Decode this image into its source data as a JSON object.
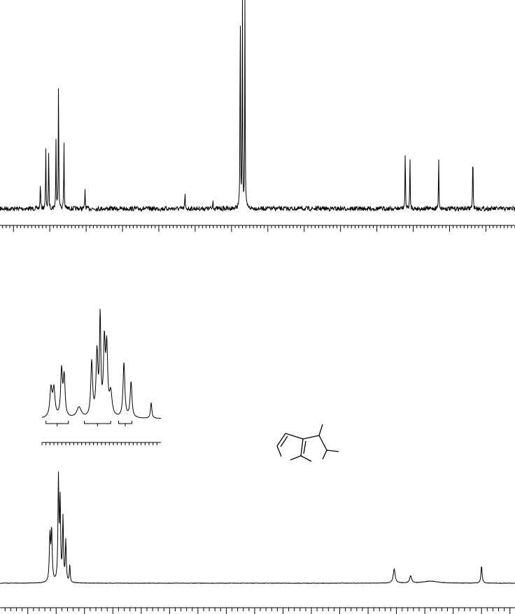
{
  "chart_data": [
    {
      "type": "line",
      "kind": "13C NMR spectrum",
      "title": "",
      "xlabel": "",
      "ylabel": "",
      "xlim": [
        143.7,
        2.0
      ],
      "x_units": "ppm",
      "x_reversed": true,
      "major_tick_step": 10,
      "minor_tick_step": 1,
      "tick_labels_visible": false,
      "baseline_noise": true,
      "peaks": [
        {
          "ppm": 132.6,
          "intensity": 21
        },
        {
          "ppm": 131.1,
          "intensity": 45
        },
        {
          "ppm": 130.3,
          "intensity": 45
        },
        {
          "ppm": 128.3,
          "intensity": 51
        },
        {
          "ppm": 127.6,
          "intensity": 100
        },
        {
          "ppm": 126.1,
          "intensity": 51
        },
        {
          "ppm": 120.3,
          "intensity": 15
        },
        {
          "ppm": 92.8,
          "intensity": 11
        },
        {
          "ppm": 85.1,
          "intensity": 7
        },
        {
          "ppm": 77.6,
          "intensity": 160
        },
        {
          "ppm": 77.0,
          "intensity": 160
        },
        {
          "ppm": 76.3,
          "intensity": 160
        },
        {
          "ppm": 32.2,
          "intensity": 45
        },
        {
          "ppm": 30.9,
          "intensity": 38
        },
        {
          "ppm": 23.0,
          "intensity": 39
        },
        {
          "ppm": 13.6,
          "intensity": 44
        }
      ]
    },
    {
      "type": "line",
      "kind": "1H NMR spectrum",
      "title": "",
      "xlabel": "",
      "ylabel": "",
      "xlim": [
        8.49,
        -0.59
      ],
      "x_units": "ppm",
      "x_reversed": true,
      "major_tick_step": 0.5,
      "minor_tick_step": 0.1,
      "tick_labels_visible": false,
      "peaks": [
        {
          "ppm": 7.61,
          "intensity": 45,
          "width": 0.012
        },
        {
          "ppm": 7.58,
          "intensity": 50,
          "width": 0.012
        },
        {
          "ppm": 7.46,
          "intensity": 100,
          "width": 0.01
        },
        {
          "ppm": 7.43,
          "intensity": 78,
          "width": 0.01
        },
        {
          "ppm": 7.38,
          "intensity": 62,
          "width": 0.01
        },
        {
          "ppm": 7.33,
          "intensity": 40,
          "width": 0.01
        },
        {
          "ppm": 7.26,
          "intensity": 18,
          "width": 0.008
        },
        {
          "ppm": 1.54,
          "intensity": 14,
          "width": 0.02
        },
        {
          "ppm": 1.25,
          "intensity": 7,
          "width": 0.02
        },
        {
          "ppm": 0.9,
          "intensity": 2,
          "width": 0.15
        },
        {
          "ppm": 0.0,
          "intensity": 17,
          "width": 0.012
        }
      ]
    },
    {
      "type": "line",
      "kind": "1H NMR expansion (inset)",
      "title": "",
      "xlabel": "",
      "ylabel": "",
      "xlim": [
        7.65,
        7.2
      ],
      "x_units": "ppm",
      "x_reversed": true,
      "minor_tick_step": 0.015,
      "tick_labels_visible": false,
      "peaks": [
        {
          "ppm": 7.616,
          "intensity": 27,
          "width": 0.005
        },
        {
          "ppm": 7.605,
          "intensity": 26,
          "width": 0.005
        },
        {
          "ppm": 7.576,
          "intensity": 44,
          "width": 0.004
        },
        {
          "ppm": 7.566,
          "intensity": 38,
          "width": 0.004
        },
        {
          "ppm": 7.51,
          "intensity": 10,
          "width": 0.01
        },
        {
          "ppm": 7.462,
          "intensity": 52,
          "width": 0.004
        },
        {
          "ppm": 7.442,
          "intensity": 60,
          "width": 0.004
        },
        {
          "ppm": 7.43,
          "intensity": 92,
          "width": 0.003
        },
        {
          "ppm": 7.414,
          "intensity": 68,
          "width": 0.004
        },
        {
          "ppm": 7.405,
          "intensity": 62,
          "width": 0.004
        },
        {
          "ppm": 7.39,
          "intensity": 22,
          "width": 0.006
        },
        {
          "ppm": 7.34,
          "intensity": 52,
          "width": 0.004
        },
        {
          "ppm": 7.313,
          "intensity": 34,
          "width": 0.004
        },
        {
          "ppm": 7.237,
          "intensity": 15,
          "width": 0.003
        }
      ],
      "integration_ranges": [
        [
          7.635,
          7.55
        ],
        [
          7.49,
          7.39
        ],
        [
          7.36,
          7.31
        ]
      ]
    }
  ],
  "structure": {
    "kind": "bicyclic fused five-membered ring skeleton with methyl substituents"
  }
}
